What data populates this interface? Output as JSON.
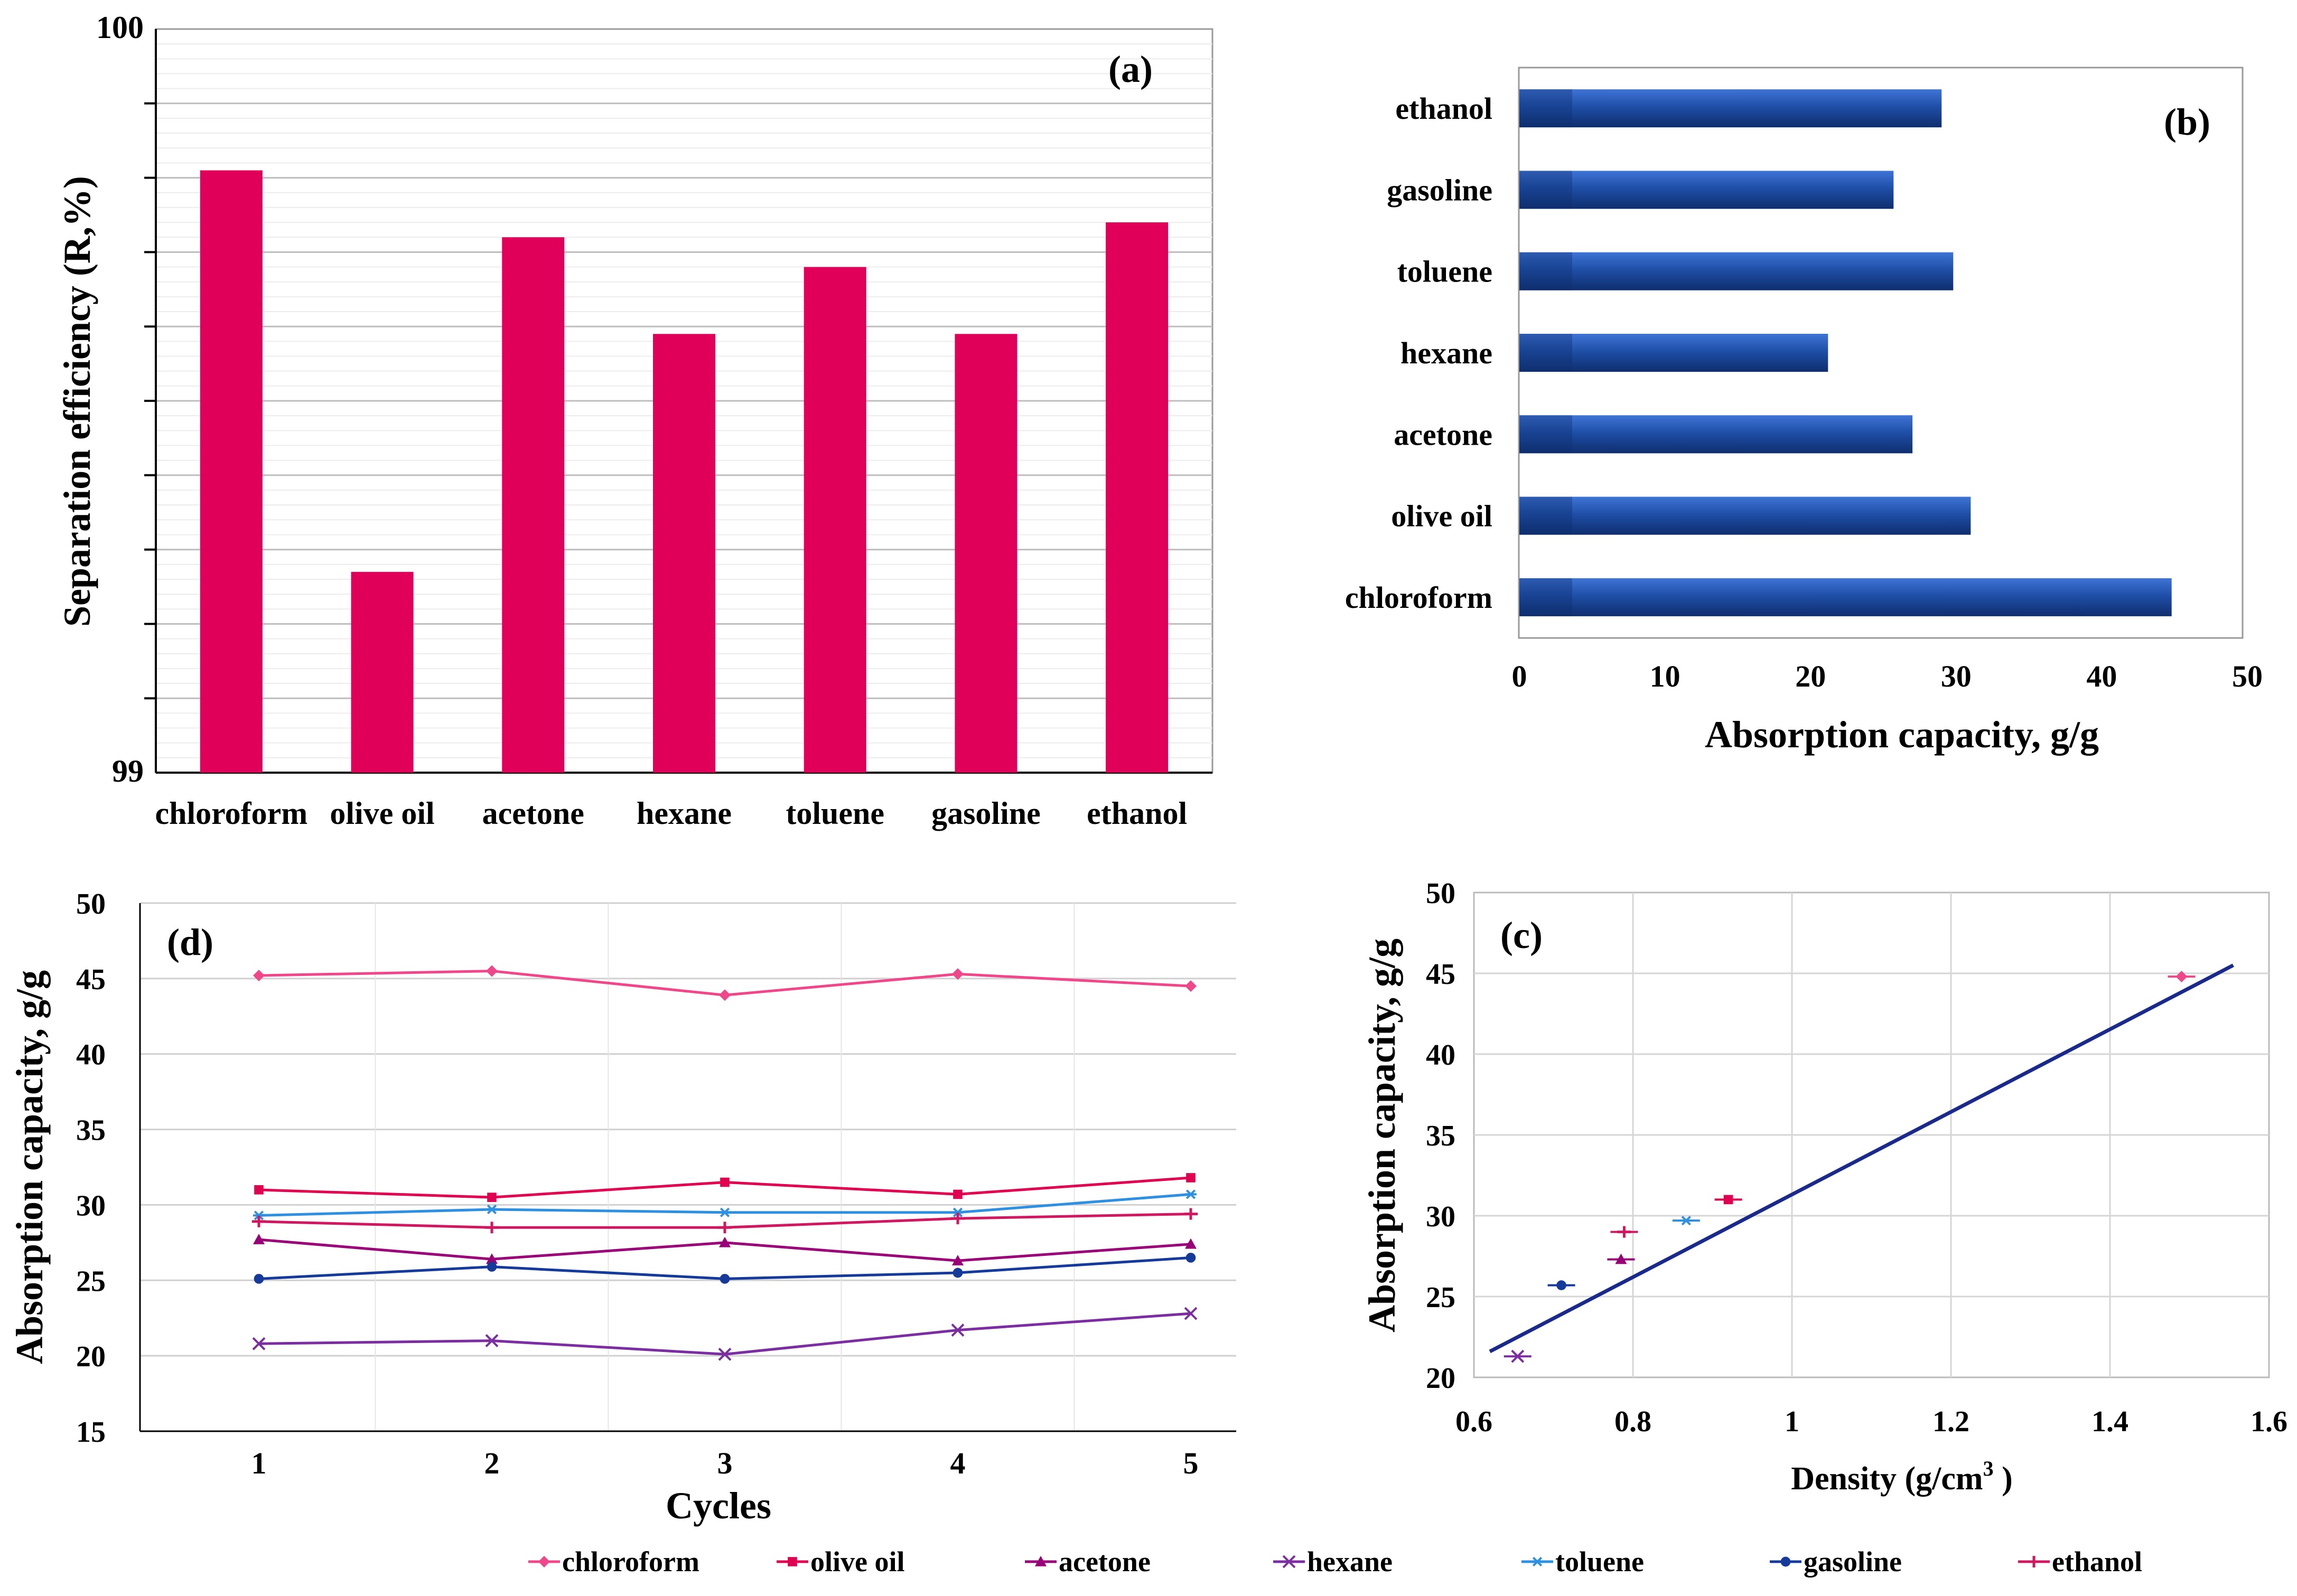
{
  "chart_data": [
    {
      "id": "a",
      "panel_label": "(a)",
      "type": "bar",
      "title": "",
      "xlabel": "",
      "ylabel": "Separation efficiency (R,%)",
      "categories": [
        "chloroform",
        "olive oil",
        "acetone",
        "hexane",
        "toluene",
        "gasoline",
        "ethanol"
      ],
      "values": [
        99.81,
        99.27,
        99.72,
        99.59,
        99.68,
        99.59,
        99.74
      ],
      "ylim": [
        99,
        100
      ],
      "ytick_labels": [
        "99",
        "100"
      ],
      "bar_color": "#e0005a",
      "grid": true
    },
    {
      "id": "b",
      "panel_label": "(b)",
      "type": "bar",
      "orientation": "horizontal",
      "xlabel": "Absorption capacity, g/g",
      "ylabel": "",
      "categories": [
        "chloroform",
        "olive oil",
        "acetone",
        "hexane",
        "toluene",
        "gasoline",
        "ethanol"
      ],
      "values": [
        44.8,
        31.0,
        27.0,
        21.2,
        29.8,
        25.7,
        29.0
      ],
      "xlim": [
        0,
        50
      ],
      "xtick_labels": [
        "0",
        "10",
        "20",
        "30",
        "40",
        "50"
      ],
      "bar_color": "#1f4fa8",
      "grid": false
    },
    {
      "id": "c",
      "panel_label": "(c)",
      "type": "scatter",
      "xlabel_main": "Density (g/cm",
      "xlabel_sup": "3",
      "xlabel_tail": " )",
      "ylabel": "Absorption capacity, g/g",
      "xlim": [
        0.6,
        1.6
      ],
      "ylim": [
        20,
        50
      ],
      "xtick_labels": [
        "0.6",
        "0.8",
        "1",
        "1.2",
        "1.4",
        "1.6"
      ],
      "ytick_labels": [
        "20",
        "25",
        "30",
        "35",
        "40",
        "45",
        "50"
      ],
      "points": [
        {
          "name": "chloroform",
          "x": 1.49,
          "y": 44.8
        },
        {
          "name": "olive oil",
          "x": 0.92,
          "y": 31.0
        },
        {
          "name": "acetone",
          "x": 0.785,
          "y": 27.3
        },
        {
          "name": "hexane",
          "x": 0.655,
          "y": 21.3
        },
        {
          "name": "toluene",
          "x": 0.867,
          "y": 29.7
        },
        {
          "name": "gasoline",
          "x": 0.71,
          "y": 25.7
        },
        {
          "name": "ethanol",
          "x": 0.789,
          "y": 29.0
        }
      ],
      "fit_line": {
        "x": [
          0.62,
          1.555
        ],
        "y": [
          21.6,
          45.5
        ],
        "color": "#1a2a8c"
      },
      "grid": true
    },
    {
      "id": "d",
      "panel_label": "(d)",
      "type": "line",
      "xlabel": "Cycles",
      "ylabel": "Absorption capacity, g/g",
      "x": [
        1,
        2,
        3,
        4,
        5
      ],
      "xtick_labels": [
        "1",
        "2",
        "3",
        "4",
        "5"
      ],
      "ylim": [
        15,
        50
      ],
      "ytick_labels": [
        "15",
        "20",
        "25",
        "30",
        "35",
        "40",
        "45",
        "50"
      ],
      "series": [
        {
          "name": "chloroform",
          "values": [
            45.2,
            45.5,
            43.9,
            45.3,
            44.5
          ]
        },
        {
          "name": "olive oil",
          "values": [
            31.0,
            30.5,
            31.5,
            30.7,
            31.8
          ]
        },
        {
          "name": "acetone",
          "values": [
            27.7,
            26.4,
            27.5,
            26.3,
            27.4
          ]
        },
        {
          "name": "hexane",
          "values": [
            20.8,
            21.0,
            20.1,
            21.7,
            22.8
          ]
        },
        {
          "name": "toluene",
          "values": [
            29.3,
            29.7,
            29.5,
            29.5,
            30.7
          ]
        },
        {
          "name": "gasoline",
          "values": [
            25.1,
            25.9,
            25.1,
            25.5,
            26.5
          ]
        },
        {
          "name": "ethanol",
          "values": [
            28.9,
            28.5,
            28.5,
            29.1,
            29.4
          ]
        }
      ],
      "legend": {
        "placement": "bottom-center"
      },
      "grid": true
    }
  ],
  "series_styles": [
    {
      "name": "chloroform",
      "color": "#f0468a",
      "marker": "diamond"
    },
    {
      "name": "olive oil",
      "color": "#e0004f",
      "marker": "square"
    },
    {
      "name": "acetone",
      "color": "#990077",
      "marker": "triangle"
    },
    {
      "name": "hexane",
      "color": "#7a2ea0",
      "marker": "x"
    },
    {
      "name": "toluene",
      "color": "#2f8fe0",
      "marker": "star"
    },
    {
      "name": "gasoline",
      "color": "#153a9a",
      "marker": "circle"
    },
    {
      "name": "ethanol",
      "color": "#d01860",
      "marker": "plus"
    }
  ]
}
